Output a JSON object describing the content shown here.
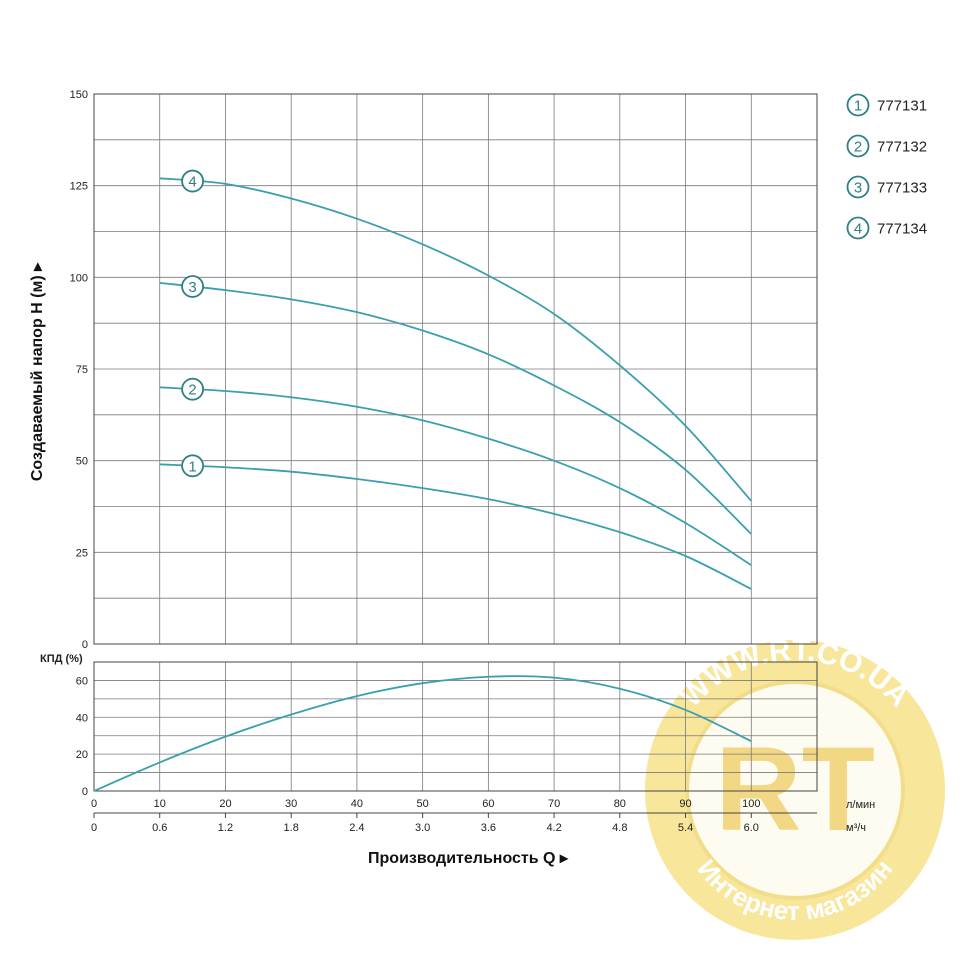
{
  "colors": {
    "curve": "#3aa0ad",
    "marker": "#2f7f88",
    "grid": "#7a7a7a"
  },
  "watermark": {
    "text_top": "WWW.RT.CO.UA",
    "text_bottom": "Интернет магазин",
    "logo": "RT"
  },
  "chart_data": [
    {
      "type": "line",
      "title": "",
      "ylabel": "Создаваемый напор H (м) ▸",
      "xlim": [
        0,
        110
      ],
      "ylim": [
        0,
        150
      ],
      "yticks": [
        0,
        25,
        50,
        75,
        100,
        125,
        150
      ],
      "grid": true,
      "legend": {
        "placement": "right",
        "entries": [
          {
            "marker": "1",
            "label": "777131"
          },
          {
            "marker": "2",
            "label": "777132"
          },
          {
            "marker": "3",
            "label": "777133"
          },
          {
            "marker": "4",
            "label": "777134"
          }
        ]
      },
      "series": [
        {
          "marker": "1",
          "x": [
            10,
            20,
            30,
            40,
            50,
            60,
            70,
            80,
            90,
            100
          ],
          "y": [
            49,
            48.2,
            47,
            45,
            42.5,
            39.5,
            35.5,
            30.5,
            24,
            15
          ]
        },
        {
          "marker": "2",
          "x": [
            10,
            20,
            30,
            40,
            50,
            60,
            70,
            80,
            90,
            100
          ],
          "y": [
            70,
            69,
            67.3,
            64.7,
            61,
            56,
            50,
            42.5,
            33,
            21.5
          ]
        },
        {
          "marker": "3",
          "x": [
            10,
            20,
            30,
            40,
            50,
            60,
            70,
            80,
            90,
            100
          ],
          "y": [
            98.5,
            96.5,
            94,
            90.5,
            85.5,
            79,
            70.5,
            60.5,
            47.5,
            30
          ]
        },
        {
          "marker": "4",
          "x": [
            10,
            20,
            30,
            40,
            50,
            60,
            70,
            80,
            90,
            100
          ],
          "y": [
            127,
            125.5,
            121.5,
            116,
            109,
            100.5,
            90,
            76,
            59.5,
            39
          ]
        }
      ]
    },
    {
      "type": "line",
      "ylabel": "КПД (%)",
      "xlim": [
        0,
        110
      ],
      "ylim": [
        0,
        70
      ],
      "yticks": [
        0,
        20,
        40,
        60
      ],
      "grid": true,
      "series": [
        {
          "x": [
            0,
            10,
            20,
            30,
            40,
            50,
            60,
            70,
            80,
            90,
            100
          ],
          "y": [
            0,
            15.5,
            29.5,
            41.5,
            51.5,
            58.5,
            62,
            61.5,
            55.5,
            44,
            27
          ]
        }
      ]
    }
  ],
  "x_axes": {
    "lpm": {
      "unit": "л/мин",
      "ticks": [
        "0",
        "10",
        "20",
        "30",
        "40",
        "50",
        "60",
        "70",
        "80",
        "90",
        "100"
      ]
    },
    "m3h": {
      "unit": "м³/ч",
      "ticks": [
        "0",
        "0.6",
        "1.2",
        "1.8",
        "2.4",
        "3.0",
        "3.6",
        "4.2",
        "4.8",
        "5.4",
        "6.0"
      ]
    },
    "title": "Производительность Q ▸"
  }
}
